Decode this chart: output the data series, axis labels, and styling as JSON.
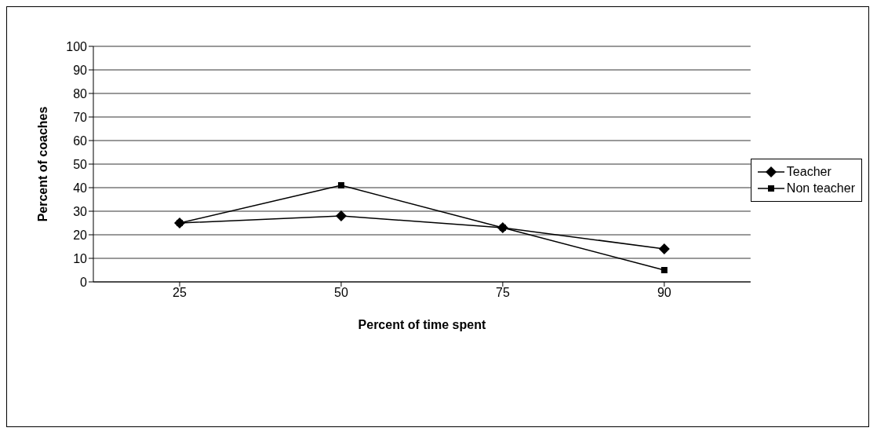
{
  "chart_data": {
    "type": "line",
    "xlabel": "Percent of time spent",
    "ylabel": "Percent of coaches",
    "categories": [
      "25",
      "50",
      "75",
      "90"
    ],
    "series": [
      {
        "name": "Teacher",
        "color": "#000000",
        "marker": "diamond",
        "values": [
          25,
          28,
          23,
          14
        ]
      },
      {
        "name": "Non teacher",
        "color": "#000000",
        "marker": "square",
        "values": [
          25,
          41,
          23,
          5
        ]
      }
    ],
    "ylim": [
      0,
      100
    ],
    "yticks": [
      0,
      10,
      20,
      30,
      40,
      50,
      60,
      70,
      80,
      90,
      100
    ],
    "grid": "y",
    "legend": "right",
    "line_style": "solid"
  }
}
